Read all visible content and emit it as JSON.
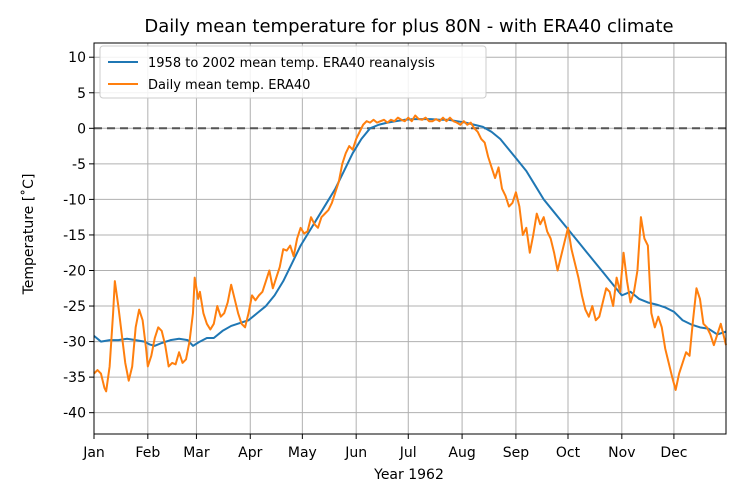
{
  "chart_data": {
    "type": "line",
    "title": "Daily mean temperature for plus 80N - with ERA40 climate",
    "xlabel": "Year 1962",
    "ylabel": "Temperature [$^\\circ$C]",
    "ylabel_display": "Temperature [˚C]",
    "x_unit": "day of year",
    "xlim": [
      1,
      365
    ],
    "ylim": [
      -43,
      12
    ],
    "yticks": [
      10,
      5,
      0,
      -5,
      -10,
      -15,
      -20,
      -25,
      -30,
      -35,
      -40
    ],
    "xticks": [
      {
        "label": "Jan",
        "day": 1
      },
      {
        "label": "Feb",
        "day": 32
      },
      {
        "label": "Mar",
        "day": 60
      },
      {
        "label": "Apr",
        "day": 91
      },
      {
        "label": "May",
        "day": 121
      },
      {
        "label": "Jun",
        "day": 152
      },
      {
        "label": "Jul",
        "day": 182
      },
      {
        "label": "Aug",
        "day": 213
      },
      {
        "label": "Sep",
        "day": 244
      },
      {
        "label": "Oct",
        "day": 274
      },
      {
        "label": "Nov",
        "day": 305
      },
      {
        "label": "Dec",
        "day": 335
      }
    ],
    "grid": true,
    "legend_position": "upper-left",
    "reference_line": {
      "y": 0,
      "style": "dashed",
      "color": "#555555"
    },
    "series": [
      {
        "name": "1958 to 2002 mean temp. ERA40 reanalysis",
        "color": "#1f77b4",
        "points": [
          [
            1,
            -29.2
          ],
          [
            5,
            -30.0
          ],
          [
            10,
            -29.8
          ],
          [
            15,
            -29.8
          ],
          [
            20,
            -29.6
          ],
          [
            25,
            -29.8
          ],
          [
            30,
            -30.0
          ],
          [
            33,
            -30.4
          ],
          [
            36,
            -30.6
          ],
          [
            40,
            -30.2
          ],
          [
            45,
            -29.8
          ],
          [
            50,
            -29.6
          ],
          [
            55,
            -29.8
          ],
          [
            58,
            -30.6
          ],
          [
            62,
            -30.0
          ],
          [
            66,
            -29.5
          ],
          [
            70,
            -29.5
          ],
          [
            75,
            -28.5
          ],
          [
            80,
            -27.8
          ],
          [
            85,
            -27.4
          ],
          [
            90,
            -27.0
          ],
          [
            95,
            -26.0
          ],
          [
            100,
            -25.0
          ],
          [
            105,
            -23.5
          ],
          [
            110,
            -21.5
          ],
          [
            115,
            -19.0
          ],
          [
            120,
            -16.5
          ],
          [
            125,
            -14.5
          ],
          [
            130,
            -12.5
          ],
          [
            135,
            -10.5
          ],
          [
            140,
            -8.5
          ],
          [
            145,
            -6.0
          ],
          [
            150,
            -3.5
          ],
          [
            155,
            -1.5
          ],
          [
            160,
            0.0
          ],
          [
            165,
            0.5
          ],
          [
            170,
            0.8
          ],
          [
            175,
            1.0
          ],
          [
            180,
            1.2
          ],
          [
            185,
            1.3
          ],
          [
            190,
            1.3
          ],
          [
            195,
            1.3
          ],
          [
            200,
            1.2
          ],
          [
            205,
            1.2
          ],
          [
            210,
            1.0
          ],
          [
            215,
            0.8
          ],
          [
            220,
            0.5
          ],
          [
            225,
            0.2
          ],
          [
            230,
            -0.5
          ],
          [
            235,
            -1.5
          ],
          [
            240,
            -3.0
          ],
          [
            245,
            -4.5
          ],
          [
            250,
            -6.0
          ],
          [
            255,
            -8.0
          ],
          [
            260,
            -10.0
          ],
          [
            265,
            -11.5
          ],
          [
            270,
            -13.0
          ],
          [
            275,
            -14.5
          ],
          [
            280,
            -16.0
          ],
          [
            285,
            -17.5
          ],
          [
            290,
            -19.0
          ],
          [
            295,
            -20.5
          ],
          [
            300,
            -22.0
          ],
          [
            305,
            -23.5
          ],
          [
            310,
            -23.0
          ],
          [
            315,
            -24.0
          ],
          [
            320,
            -24.5
          ],
          [
            325,
            -24.8
          ],
          [
            330,
            -25.2
          ],
          [
            335,
            -25.8
          ],
          [
            340,
            -27.0
          ],
          [
            345,
            -27.6
          ],
          [
            350,
            -28.0
          ],
          [
            355,
            -28.2
          ],
          [
            360,
            -29.0
          ],
          [
            365,
            -28.6
          ]
        ]
      },
      {
        "name": "Daily mean temp. ERA40",
        "color": "#ff7f0e",
        "points": [
          [
            1,
            -34.5
          ],
          [
            3,
            -34.0
          ],
          [
            5,
            -34.5
          ],
          [
            7,
            -36.5
          ],
          [
            8,
            -37.0
          ],
          [
            10,
            -33.5
          ],
          [
            12,
            -26.0
          ],
          [
            13,
            -21.5
          ],
          [
            15,
            -25.0
          ],
          [
            17,
            -29.0
          ],
          [
            19,
            -33.0
          ],
          [
            21,
            -35.5
          ],
          [
            23,
            -33.5
          ],
          [
            25,
            -28.0
          ],
          [
            27,
            -25.5
          ],
          [
            29,
            -27.0
          ],
          [
            31,
            -31.0
          ],
          [
            32,
            -33.5
          ],
          [
            34,
            -32.0
          ],
          [
            36,
            -29.5
          ],
          [
            38,
            -28.0
          ],
          [
            40,
            -28.5
          ],
          [
            42,
            -30.5
          ],
          [
            44,
            -33.5
          ],
          [
            46,
            -33.0
          ],
          [
            48,
            -33.2
          ],
          [
            50,
            -31.5
          ],
          [
            52,
            -33.0
          ],
          [
            54,
            -32.5
          ],
          [
            56,
            -30.0
          ],
          [
            58,
            -26.0
          ],
          [
            59,
            -21.0
          ],
          [
            61,
            -24.0
          ],
          [
            62,
            -23.0
          ],
          [
            64,
            -26.0
          ],
          [
            66,
            -27.5
          ],
          [
            68,
            -28.3
          ],
          [
            70,
            -27.5
          ],
          [
            72,
            -25.0
          ],
          [
            74,
            -26.5
          ],
          [
            76,
            -26.0
          ],
          [
            78,
            -24.5
          ],
          [
            80,
            -22.0
          ],
          [
            82,
            -24.0
          ],
          [
            84,
            -26.0
          ],
          [
            86,
            -27.5
          ],
          [
            88,
            -28.0
          ],
          [
            90,
            -26.0
          ],
          [
            92,
            -23.5
          ],
          [
            94,
            -24.2
          ],
          [
            96,
            -23.5
          ],
          [
            98,
            -23.0
          ],
          [
            100,
            -21.5
          ],
          [
            102,
            -20.0
          ],
          [
            104,
            -22.5
          ],
          [
            106,
            -21.0
          ],
          [
            108,
            -19.5
          ],
          [
            110,
            -17.0
          ],
          [
            112,
            -17.2
          ],
          [
            114,
            -16.5
          ],
          [
            116,
            -18.0
          ],
          [
            118,
            -15.5
          ],
          [
            120,
            -14.0
          ],
          [
            122,
            -14.8
          ],
          [
            124,
            -14.5
          ],
          [
            126,
            -12.5
          ],
          [
            128,
            -13.5
          ],
          [
            130,
            -14.0
          ],
          [
            132,
            -12.5
          ],
          [
            134,
            -12.0
          ],
          [
            136,
            -11.5
          ],
          [
            138,
            -10.5
          ],
          [
            140,
            -9.0
          ],
          [
            142,
            -7.5
          ],
          [
            144,
            -5.0
          ],
          [
            146,
            -3.5
          ],
          [
            148,
            -2.5
          ],
          [
            150,
            -3.0
          ],
          [
            152,
            -1.5
          ],
          [
            154,
            -0.5
          ],
          [
            156,
            0.5
          ],
          [
            158,
            1.0
          ],
          [
            160,
            0.8
          ],
          [
            162,
            1.2
          ],
          [
            164,
            0.8
          ],
          [
            166,
            1.0
          ],
          [
            168,
            1.2
          ],
          [
            170,
            0.8
          ],
          [
            172,
            1.2
          ],
          [
            174,
            1.0
          ],
          [
            176,
            1.5
          ],
          [
            178,
            1.2
          ],
          [
            180,
            1.0
          ],
          [
            182,
            1.5
          ],
          [
            184,
            1.0
          ],
          [
            186,
            1.8
          ],
          [
            188,
            1.3
          ],
          [
            190,
            1.2
          ],
          [
            192,
            1.5
          ],
          [
            194,
            1.0
          ],
          [
            196,
            1.0
          ],
          [
            198,
            1.3
          ],
          [
            200,
            1.0
          ],
          [
            202,
            1.5
          ],
          [
            204,
            1.0
          ],
          [
            206,
            1.5
          ],
          [
            208,
            1.0
          ],
          [
            210,
            0.8
          ],
          [
            212,
            0.5
          ],
          [
            214,
            1.0
          ],
          [
            216,
            0.5
          ],
          [
            218,
            0.8
          ],
          [
            220,
            0.0
          ],
          [
            222,
            -0.5
          ],
          [
            224,
            -1.5
          ],
          [
            226,
            -2.0
          ],
          [
            228,
            -4.0
          ],
          [
            230,
            -5.5
          ],
          [
            232,
            -7.0
          ],
          [
            234,
            -5.5
          ],
          [
            236,
            -8.5
          ],
          [
            238,
            -9.5
          ],
          [
            240,
            -11.0
          ],
          [
            242,
            -10.5
          ],
          [
            244,
            -9.0
          ],
          [
            246,
            -11.0
          ],
          [
            248,
            -15.0
          ],
          [
            250,
            -14.0
          ],
          [
            252,
            -17.5
          ],
          [
            254,
            -15.0
          ],
          [
            256,
            -12.0
          ],
          [
            258,
            -13.5
          ],
          [
            260,
            -12.5
          ],
          [
            262,
            -14.5
          ],
          [
            264,
            -15.5
          ],
          [
            266,
            -17.5
          ],
          [
            268,
            -20.0
          ],
          [
            270,
            -18.0
          ],
          [
            272,
            -16.0
          ],
          [
            274,
            -14.0
          ],
          [
            276,
            -17.0
          ],
          [
            278,
            -19.0
          ],
          [
            280,
            -21.0
          ],
          [
            282,
            -23.5
          ],
          [
            284,
            -25.5
          ],
          [
            286,
            -26.5
          ],
          [
            288,
            -25.0
          ],
          [
            290,
            -27.0
          ],
          [
            292,
            -26.5
          ],
          [
            294,
            -24.5
          ],
          [
            296,
            -22.5
          ],
          [
            298,
            -23.0
          ],
          [
            300,
            -25.0
          ],
          [
            302,
            -21.0
          ],
          [
            304,
            -23.0
          ],
          [
            306,
            -17.5
          ],
          [
            308,
            -21.5
          ],
          [
            310,
            -24.5
          ],
          [
            312,
            -23.0
          ],
          [
            314,
            -20.0
          ],
          [
            316,
            -12.5
          ],
          [
            318,
            -15.5
          ],
          [
            320,
            -16.5
          ],
          [
            322,
            -26.0
          ],
          [
            324,
            -28.0
          ],
          [
            326,
            -26.5
          ],
          [
            328,
            -28.0
          ],
          [
            330,
            -31.0
          ],
          [
            332,
            -33.0
          ],
          [
            334,
            -35.0
          ],
          [
            336,
            -36.8
          ],
          [
            338,
            -34.5
          ],
          [
            340,
            -33.0
          ],
          [
            342,
            -31.5
          ],
          [
            344,
            -32.0
          ],
          [
            346,
            -27.0
          ],
          [
            348,
            -22.5
          ],
          [
            350,
            -24.0
          ],
          [
            352,
            -27.5
          ],
          [
            354,
            -28.0
          ],
          [
            356,
            -29.0
          ],
          [
            358,
            -30.5
          ],
          [
            360,
            -29.0
          ],
          [
            362,
            -27.5
          ],
          [
            365,
            -30.5
          ]
        ]
      }
    ]
  }
}
